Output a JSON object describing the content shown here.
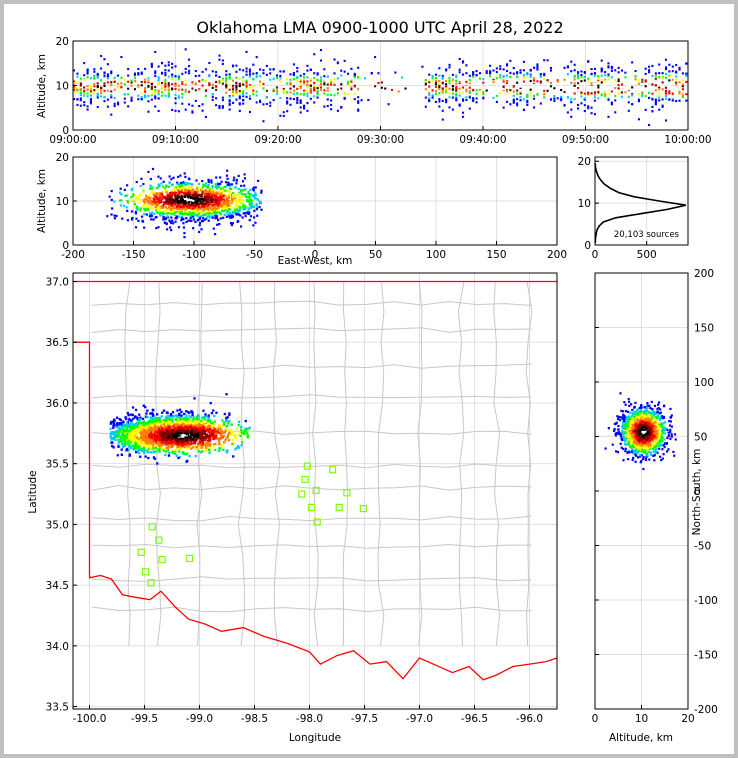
{
  "title": "Oklahoma LMA 0900-1000 UTC April 28, 2022",
  "colors": {
    "source_colormap": [
      "#0000ff",
      "#00c8ff",
      "#00ff00",
      "#ffff00",
      "#ff8000",
      "#ff0000",
      "#800000",
      "#000000",
      "#ffffff"
    ],
    "state_border": "#ff0000",
    "county_lines": "#c8c8c8",
    "station_markers": "#7fff00",
    "grid": "#e0e0e0"
  },
  "chart_data": [
    {
      "name": "time-height",
      "type": "heatmap",
      "ylabel": "Altitude, km",
      "xlabel": "",
      "xlim": [
        "09:00:00",
        "10:00:00"
      ],
      "ylim": [
        0,
        20
      ],
      "x_ticks": [
        "09:00:00",
        "09:10:00",
        "09:20:00",
        "09:30:00",
        "09:40:00",
        "09:50:00",
        "10:00:00"
      ],
      "y_ticks": [
        "0",
        "10",
        "20"
      ],
      "gap_minutes": [
        28,
        34
      ]
    },
    {
      "name": "east-west-height",
      "type": "heatmap",
      "xlabel": "East-West, km",
      "ylabel": "Altitude, km",
      "xlim": [
        -200,
        200
      ],
      "ylim": [
        0,
        20
      ],
      "x_ticks": [
        "-200",
        "-150",
        "-100",
        "-50",
        "0",
        "50",
        "100",
        "150",
        "200"
      ],
      "y_ticks": [
        "0",
        "10",
        "20"
      ],
      "centroid_x": -100,
      "centroid_z": 10
    },
    {
      "name": "altitude-histogram",
      "type": "line",
      "x_ticks": [
        "0",
        "500"
      ],
      "y_ticks": [
        "0",
        "10",
        "20"
      ],
      "xlim": [
        0,
        900
      ],
      "ylim": [
        0,
        21
      ],
      "x": [
        2,
        5,
        10,
        18,
        40,
        80,
        200,
        450,
        700,
        880,
        620,
        380,
        230,
        150,
        90,
        55,
        30,
        15,
        5,
        1
      ],
      "y": [
        0.5,
        1.5,
        2.5,
        3.5,
        4.5,
        5.5,
        6.5,
        7.5,
        8.5,
        9.5,
        10.5,
        11.5,
        12.5,
        13.5,
        14.5,
        15.5,
        16.5,
        17.5,
        18.5,
        19.5
      ],
      "annotation": "20,103 sources"
    },
    {
      "name": "plan-view",
      "type": "heatmap",
      "xlabel": "Longitude",
      "ylabel": "Latitude",
      "xlim": [
        -100.15,
        -95.75
      ],
      "ylim": [
        33.48,
        37.07
      ],
      "x_ticks": [
        "-100.0",
        "-99.5",
        "-99.0",
        "-98.5",
        "-98.0",
        "-97.5",
        "-97.0",
        "-96.5",
        "-96.0"
      ],
      "y_ticks": [
        "33.5",
        "34.0",
        "34.5",
        "35.0",
        "35.5",
        "36.0",
        "36.5",
        "37.0"
      ],
      "stations": [
        {
          "lon": -98.02,
          "lat": 35.48
        },
        {
          "lon": -97.79,
          "lat": 35.45
        },
        {
          "lon": -98.04,
          "lat": 35.37
        },
        {
          "lon": -98.07,
          "lat": 35.25
        },
        {
          "lon": -97.94,
          "lat": 35.28
        },
        {
          "lon": -97.66,
          "lat": 35.26
        },
        {
          "lon": -97.98,
          "lat": 35.14
        },
        {
          "lon": -97.73,
          "lat": 35.14
        },
        {
          "lon": -97.51,
          "lat": 35.13
        },
        {
          "lon": -97.93,
          "lat": 35.02
        },
        {
          "lon": -99.43,
          "lat": 34.98
        },
        {
          "lon": -99.37,
          "lat": 34.87
        },
        {
          "lon": -99.53,
          "lat": 34.77
        },
        {
          "lon": -99.34,
          "lat": 34.71
        },
        {
          "lon": -99.09,
          "lat": 34.72
        },
        {
          "lon": -99.49,
          "lat": 34.61
        },
        {
          "lon": -99.44,
          "lat": 34.52
        }
      ]
    },
    {
      "name": "north-south-height",
      "type": "heatmap",
      "xlabel": "Altitude, km",
      "ylabel": "North-South, km",
      "xlim": [
        0,
        20
      ],
      "ylim": [
        -200,
        200
      ],
      "x_ticks": [
        "0",
        "10",
        "20"
      ],
      "y_ticks": [
        "-200",
        "-150",
        "-100",
        "-50",
        "0",
        "50",
        "100",
        "150",
        "200"
      ],
      "centroid_y": 55,
      "centroid_z": 10
    }
  ]
}
